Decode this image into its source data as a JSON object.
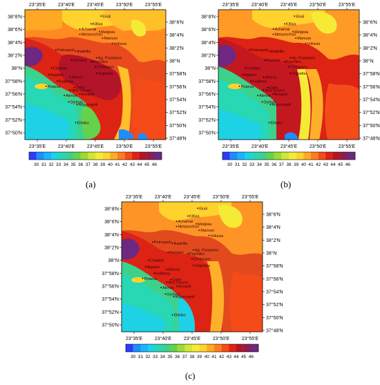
{
  "panels": [
    {
      "label": "(a)",
      "top_ticks": [
        "23°35′E",
        "23°40′E",
        "23°45′E",
        "23°50′E",
        "23°55′E"
      ],
      "bottom_ticks": [
        "23°35′E",
        "23°40′E",
        "23°45′E",
        "23°50′E",
        "23°55′E"
      ],
      "left_ticks": [
        "38°8′N",
        "38°6′N",
        "38°4′N",
        "38°2′N",
        "38°N",
        "37°58′N",
        "37°56′N",
        "37°54′N",
        "37°52′N",
        "37°50′N"
      ],
      "right_ticks": [
        "38°6′N",
        "38°4′N",
        "38°2′N",
        "38°N",
        "37°58′N",
        "37°56′N",
        "37°54′N",
        "37°52′N",
        "37°50′N",
        "37°48′N"
      ]
    },
    {
      "label": "(b)",
      "top_ticks": [
        "23°35′E",
        "23°40′E",
        "23°45′E",
        "23°50′E",
        "23°55′E"
      ],
      "bottom_ticks": [
        "23°35′E",
        "23°40′E",
        "23°45′E",
        "23°50′E",
        "23°55′E"
      ],
      "left_ticks": [
        "38°8′N",
        "38°6′N",
        "38°4′N",
        "38°2′N",
        "38°N",
        "37°58′N",
        "37°56′N",
        "37°54′N",
        "37°52′N",
        "37°50′N"
      ],
      "right_ticks": [
        "38°6′N",
        "38°4′N",
        "38°2′N",
        "38°N",
        "37°58′N",
        "37°56′N",
        "37°54′N",
        "37°52′N",
        "37°50′N",
        "37°48′N"
      ]
    },
    {
      "label": "(c)",
      "top_ticks": [
        "23°35′E",
        "23°40′E",
        "23°45′E",
        "23°50′E",
        "23°55′E"
      ],
      "bottom_ticks": [
        "23°35′E",
        "23°40′E",
        "23°45′E",
        "23°50′E",
        "23°55′E"
      ],
      "left_ticks": [
        "38°8′N",
        "38°6′N",
        "38°4′N",
        "38°2′N",
        "38°N",
        "37°58′N",
        "37°56′N",
        "37°54′N",
        "37°52′N",
        "37°50′N"
      ],
      "right_ticks": [
        "38°6′N",
        "38°4′N",
        "38°2′N",
        "38°N",
        "37°58′N",
        "37°56′N",
        "37°54′N",
        "37°52′N",
        "37°50′N",
        "37°48′N"
      ]
    }
  ],
  "cities": [
    "Ekali",
    "Kifisia",
    "Acharnai",
    "Melgisia",
    "Metamorfosi",
    "Marousi",
    "Vrilissia",
    "Petroupoli",
    "Iliadellia",
    "Ag. Paraskevi",
    "Peristeri",
    "Psychiko",
    "Cholargos",
    "Chaidari",
    "Zografou",
    "Aigaleo",
    "Athens",
    "Kallithea",
    "Piraeus",
    "Dafni",
    "Nea Smyrni",
    "Ilioupoli",
    "Alimos",
    "Glyfada",
    "Argyroupoli",
    "Ellinikо"
  ],
  "colorbar": {
    "ticks": [
      "30",
      "31",
      "32",
      "33",
      "34",
      "35",
      "36",
      "37",
      "38",
      "39",
      "40",
      "41",
      "42",
      "43",
      "44",
      "45",
      "46"
    ],
    "colors": [
      "#2a3cff",
      "#1e8cff",
      "#19b4ff",
      "#1ed2e6",
      "#28d7b4",
      "#3cd28c",
      "#64d24b",
      "#9bdc32",
      "#d2e632",
      "#f5eb37",
      "#ffd22d",
      "#ffaa23",
      "#ff7d1e",
      "#f54b19",
      "#dc2314",
      "#b41428",
      "#8c1e50",
      "#6e2882"
    ]
  }
}
